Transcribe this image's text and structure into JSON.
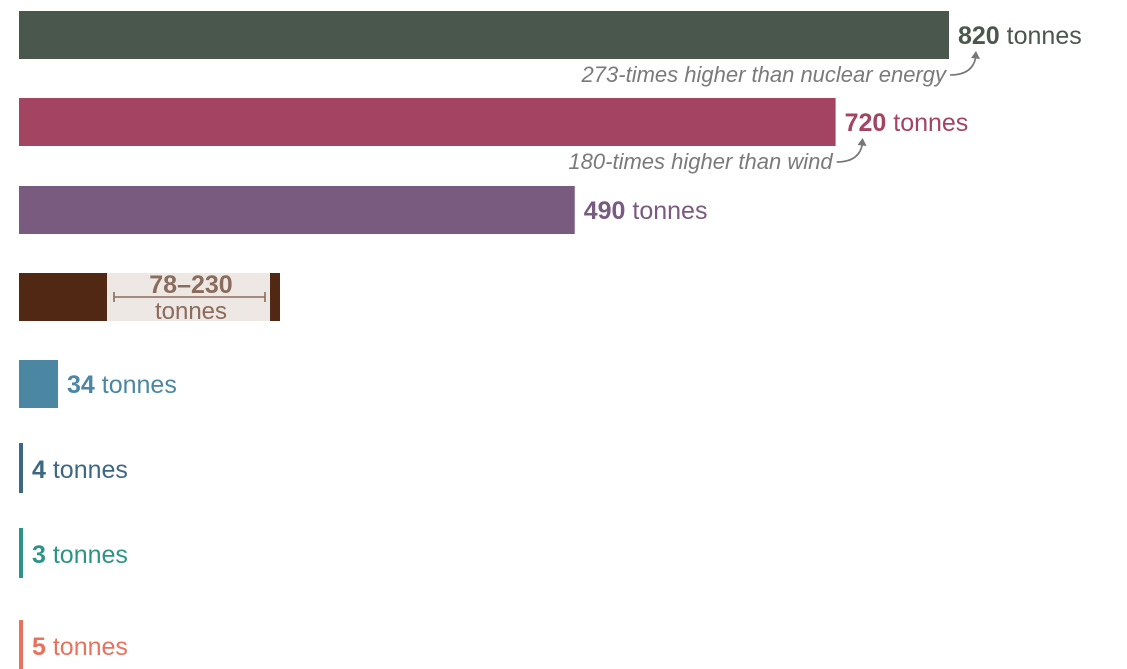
{
  "chart_data": {
    "type": "bar",
    "orientation": "horizontal",
    "unit": "tonnes",
    "xlim": [
      0,
      820
    ],
    "bars": [
      {
        "value": 820,
        "value_label": "820",
        "color": "#4a574c",
        "note": "273-times higher than nuclear energy"
      },
      {
        "value": 720,
        "value_label": "720",
        "color": "#a34462",
        "note": "180-times higher than wind"
      },
      {
        "value": 490,
        "value_label": "490",
        "color": "#795b80"
      },
      {
        "value_min": 78,
        "value_max": 230,
        "value_label": "78–230",
        "color": "#512814",
        "label_color": "#8b6b5c",
        "range_bg": "#ede8e3"
      },
      {
        "value": 34,
        "value_label": "34",
        "color": "#4b87a3"
      },
      {
        "value": 4,
        "value_label": "4",
        "color": "#3d6883"
      },
      {
        "value": 3,
        "value_label": "3",
        "color": "#2c9486"
      },
      {
        "value": 5,
        "value_label": "5",
        "color": "#e9725f"
      }
    ]
  }
}
